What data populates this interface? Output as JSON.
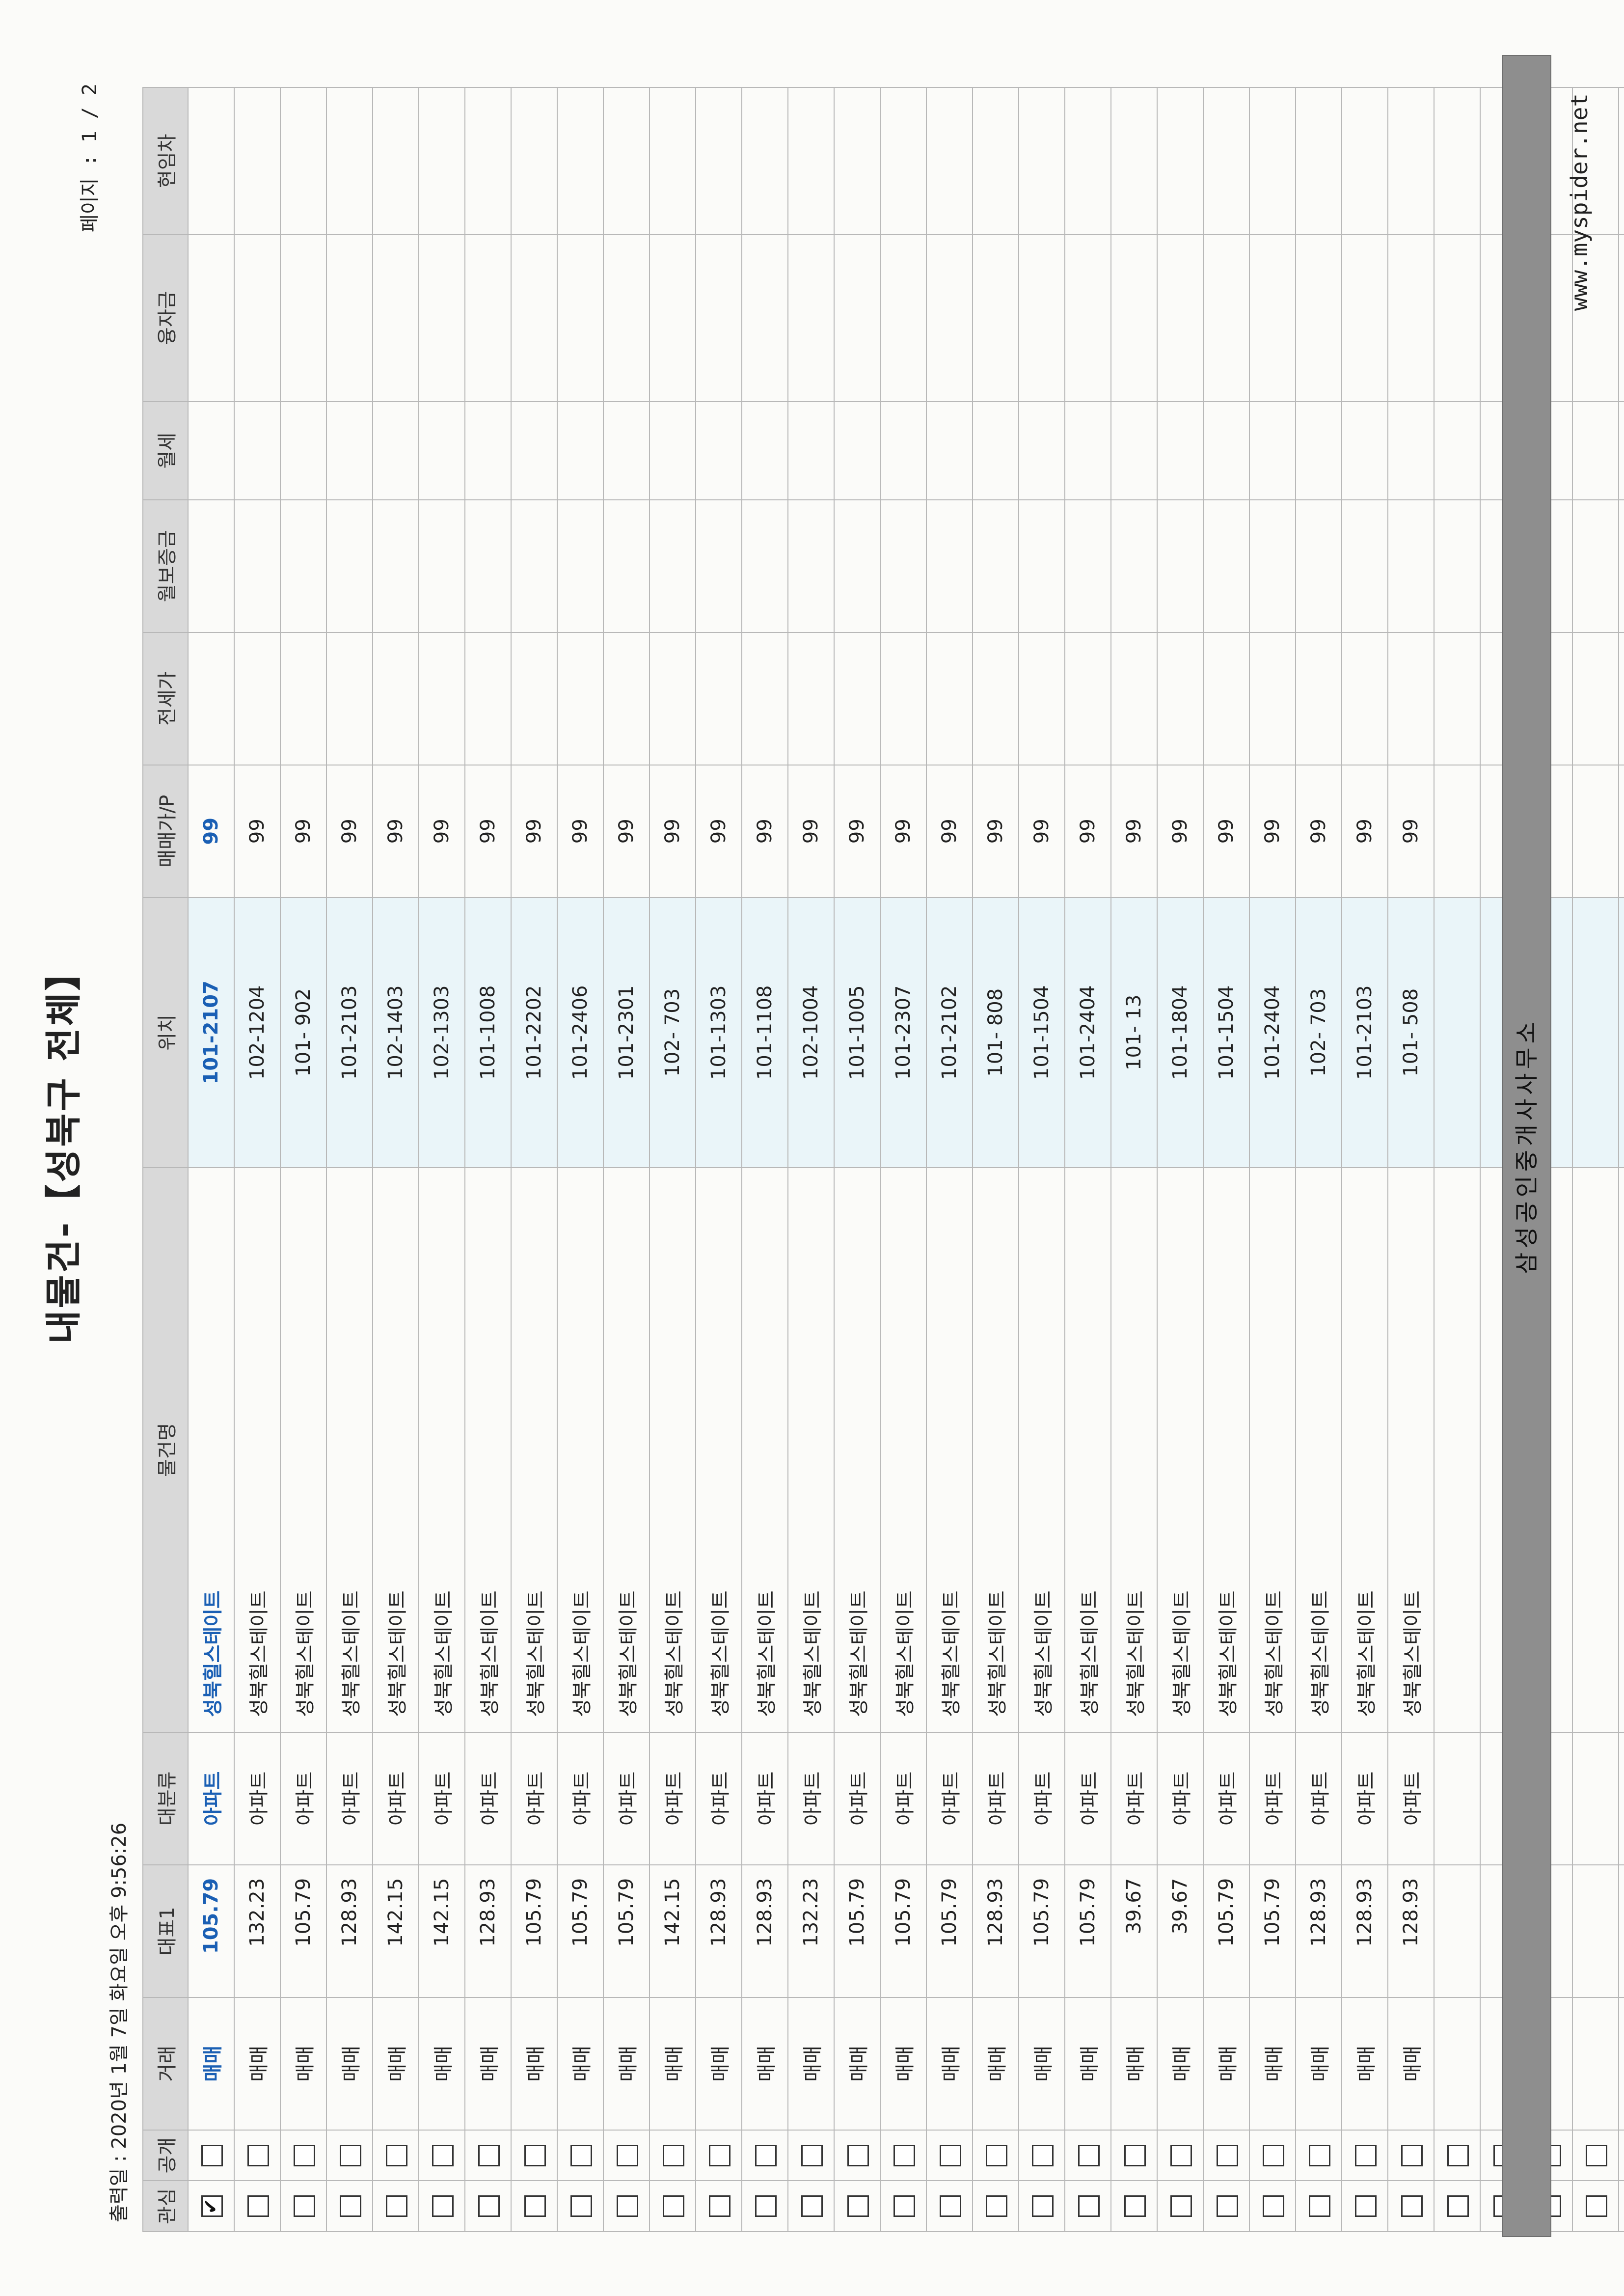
{
  "report": {
    "title": "내물건-【성북구 전체】",
    "printed": "출력일 : 2020년 1월 7일 화요일 오후 9:56:26",
    "page": "페이지 : 1 / 2"
  },
  "columns": {
    "favorite": "관심",
    "public": "공개",
    "deal": "거래",
    "area": "대표1",
    "category": "대분류",
    "name": "물건명",
    "location": "위치",
    "price": "매매가/P",
    "jeonse": "전세가",
    "deposit": "월보증금",
    "rent": "월세",
    "loan": "융자금",
    "tenant": "현임차"
  },
  "rows": [
    {
      "favorite": true,
      "public": false,
      "deal": "매매",
      "area": "105.79",
      "category": "아파트",
      "name": "성북힐스테이트",
      "location": "101-2107",
      "price": "99"
    },
    {
      "favorite": false,
      "public": false,
      "deal": "매매",
      "area": "132.23",
      "category": "아파트",
      "name": "성북힐스테이트",
      "location": "102-1204",
      "price": "99"
    },
    {
      "favorite": false,
      "public": false,
      "deal": "매매",
      "area": "105.79",
      "category": "아파트",
      "name": "성북힐스테이트",
      "location": "101- 902",
      "price": "99"
    },
    {
      "favorite": false,
      "public": false,
      "deal": "매매",
      "area": "128.93",
      "category": "아파트",
      "name": "성북힐스테이트",
      "location": "101-2103",
      "price": "99"
    },
    {
      "favorite": false,
      "public": false,
      "deal": "매매",
      "area": "142.15",
      "category": "아파트",
      "name": "성북힐스테이트",
      "location": "102-1403",
      "price": "99"
    },
    {
      "favorite": false,
      "public": false,
      "deal": "매매",
      "area": "142.15",
      "category": "아파트",
      "name": "성북힐스테이트",
      "location": "102-1303",
      "price": "99"
    },
    {
      "favorite": false,
      "public": false,
      "deal": "매매",
      "area": "128.93",
      "category": "아파트",
      "name": "성북힐스테이트",
      "location": "101-1008",
      "price": "99"
    },
    {
      "favorite": false,
      "public": false,
      "deal": "매매",
      "area": "105.79",
      "category": "아파트",
      "name": "성북힐스테이트",
      "location": "101-2202",
      "price": "99"
    },
    {
      "favorite": false,
      "public": false,
      "deal": "매매",
      "area": "105.79",
      "category": "아파트",
      "name": "성북힐스테이트",
      "location": "101-2406",
      "price": "99"
    },
    {
      "favorite": false,
      "public": false,
      "deal": "매매",
      "area": "105.79",
      "category": "아파트",
      "name": "성북힐스테이트",
      "location": "101-2301",
      "price": "99"
    },
    {
      "favorite": false,
      "public": false,
      "deal": "매매",
      "area": "142.15",
      "category": "아파트",
      "name": "성북힐스테이트",
      "location": "102- 703",
      "price": "99"
    },
    {
      "favorite": false,
      "public": false,
      "deal": "매매",
      "area": "128.93",
      "category": "아파트",
      "name": "성북힐스테이트",
      "location": "101-1303",
      "price": "99"
    },
    {
      "favorite": false,
      "public": false,
      "deal": "매매",
      "area": "128.93",
      "category": "아파트",
      "name": "성북힐스테이트",
      "location": "101-1108",
      "price": "99"
    },
    {
      "favorite": false,
      "public": false,
      "deal": "매매",
      "area": "132.23",
      "category": "아파트",
      "name": "성북힐스테이트",
      "location": "102-1004",
      "price": "99"
    },
    {
      "favorite": false,
      "public": false,
      "deal": "매매",
      "area": "105.79",
      "category": "아파트",
      "name": "성북힐스테이트",
      "location": "101-1005",
      "price": "99"
    },
    {
      "favorite": false,
      "public": false,
      "deal": "매매",
      "area": "105.79",
      "category": "아파트",
      "name": "성북힐스테이트",
      "location": "101-2307",
      "price": "99"
    },
    {
      "favorite": false,
      "public": false,
      "deal": "매매",
      "area": "105.79",
      "category": "아파트",
      "name": "성북힐스테이트",
      "location": "101-2102",
      "price": "99"
    },
    {
      "favorite": false,
      "public": false,
      "deal": "매매",
      "area": "128.93",
      "category": "아파트",
      "name": "성북힐스테이트",
      "location": "101- 808",
      "price": "99"
    },
    {
      "favorite": false,
      "public": false,
      "deal": "매매",
      "area": "105.79",
      "category": "아파트",
      "name": "성북힐스테이트",
      "location": "101-1504",
      "price": "99"
    },
    {
      "favorite": false,
      "public": false,
      "deal": "매매",
      "area": "105.79",
      "category": "아파트",
      "name": "성북힐스테이트",
      "location": "101-2404",
      "price": "99"
    },
    {
      "favorite": false,
      "public": false,
      "deal": "매매",
      "area": "39.67",
      "category": "아파트",
      "name": "성북힐스테이트",
      "location": "101-  13",
      "price": "99"
    },
    {
      "favorite": false,
      "public": false,
      "deal": "매매",
      "area": "39.67",
      "category": "아파트",
      "name": "성북힐스테이트",
      "location": "101-1804",
      "price": "99"
    },
    {
      "favorite": false,
      "public": false,
      "deal": "매매",
      "area": "105.79",
      "category": "아파트",
      "name": "성북힐스테이트",
      "location": "101-1504",
      "price": "99"
    },
    {
      "favorite": false,
      "public": false,
      "deal": "매매",
      "area": "105.79",
      "category": "아파트",
      "name": "성북힐스테이트",
      "location": "101-2404",
      "price": "99"
    },
    {
      "favorite": false,
      "public": false,
      "deal": "매매",
      "area": "128.93",
      "category": "아파트",
      "name": "성북힐스테이트",
      "location": "102- 703",
      "price": "99"
    },
    {
      "favorite": false,
      "public": false,
      "deal": "매매",
      "area": "128.93",
      "category": "아파트",
      "name": "성북힐스테이트",
      "location": "101-2103",
      "price": "99"
    },
    {
      "favorite": false,
      "public": false,
      "deal": "매매",
      "area": "128.93",
      "category": "아파트",
      "name": "성북힐스테이트",
      "location": "101- 508",
      "price": "99"
    },
    {
      "favorite": false,
      "public": false,
      "deal": "",
      "area": "",
      "category": "",
      "name": "",
      "location": "",
      "price": ""
    },
    {
      "favorite": false,
      "public": false,
      "deal": "",
      "area": "",
      "category": "",
      "name": "",
      "location": "",
      "price": ""
    },
    {
      "favorite": false,
      "public": false,
      "deal": "",
      "area": "",
      "category": "",
      "name": "",
      "location": "",
      "price": ""
    },
    {
      "favorite": false,
      "public": false,
      "deal": "",
      "area": "",
      "category": "",
      "name": "",
      "location": "",
      "price": ""
    },
    {
      "favorite": false,
      "public": false,
      "deal": "",
      "area": "",
      "category": "",
      "name": "",
      "location": "",
      "price": ""
    }
  ],
  "footer": {
    "office": "삼성공인중개사사무소",
    "site": "www.myspider.net"
  }
}
